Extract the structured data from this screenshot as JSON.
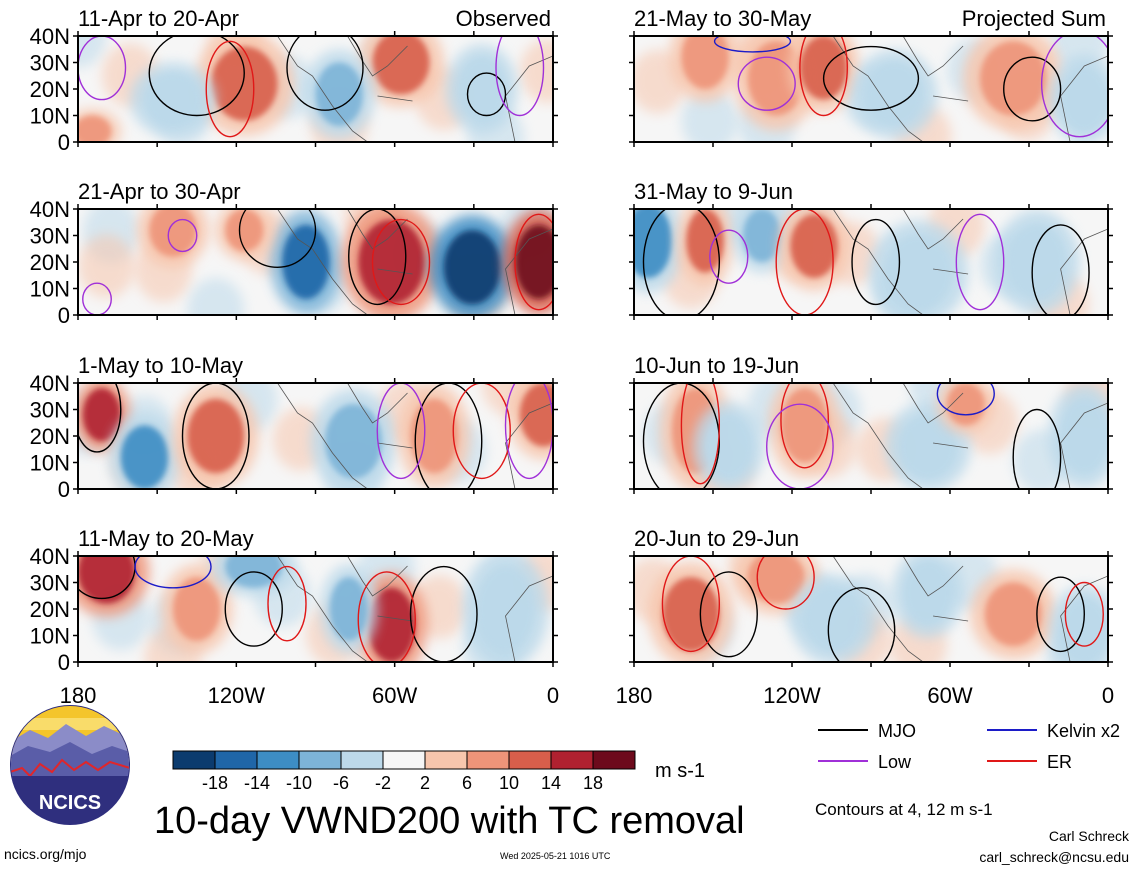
{
  "panels": {
    "observed": [
      {
        "title": "11-Apr to 20-Apr",
        "corner_label": "Observed"
      },
      {
        "title": "21-Apr to 30-Apr"
      },
      {
        "title": "1-May to 10-May"
      },
      {
        "title": "11-May to 20-May"
      }
    ],
    "projected": [
      {
        "title": "21-May to 30-May",
        "corner_label": "Projected Sum"
      },
      {
        "title": "31-May to 9-Jun"
      },
      {
        "title": "10-Jun to 19-Jun"
      },
      {
        "title": "20-Jun to 29-Jun"
      }
    ]
  },
  "axes": {
    "lat_ticks": [
      "40N",
      "30N",
      "20N",
      "10N",
      "0"
    ],
    "lon_ticks": [
      "180",
      "120W",
      "60W",
      "0"
    ]
  },
  "colorbar": {
    "tick_labels": [
      "-18",
      "-14",
      "-10",
      "-6",
      "-2",
      "2",
      "6",
      "10",
      "14",
      "18"
    ],
    "colors": [
      "#0b3b6e",
      "#1f66a8",
      "#3d8dc4",
      "#7db4d8",
      "#bcd9ea",
      "#f6f6f6",
      "#f7c6ad",
      "#ee9479",
      "#d85e4b",
      "#b02130",
      "#6d0a1c"
    ],
    "units": "m s-1"
  },
  "legend": {
    "items": [
      {
        "label": "MJO",
        "color": "#000000"
      },
      {
        "label": "Kelvin x2",
        "color": "#1c1cc8"
      },
      {
        "label": "Low",
        "color": "#a030d8"
      },
      {
        "label": "ER",
        "color": "#e01818"
      }
    ],
    "note": "Contours at 4, 12 m s-1"
  },
  "title": "10-day VWND200 with TC removal",
  "logo": {
    "text": "NCICS"
  },
  "footer": {
    "url": "ncics.org/mjo",
    "timestamp": "Wed 2025-05-21 1016 UTC",
    "author": "Carl Schreck",
    "email": "carl_schreck@ncsu.edu"
  }
}
